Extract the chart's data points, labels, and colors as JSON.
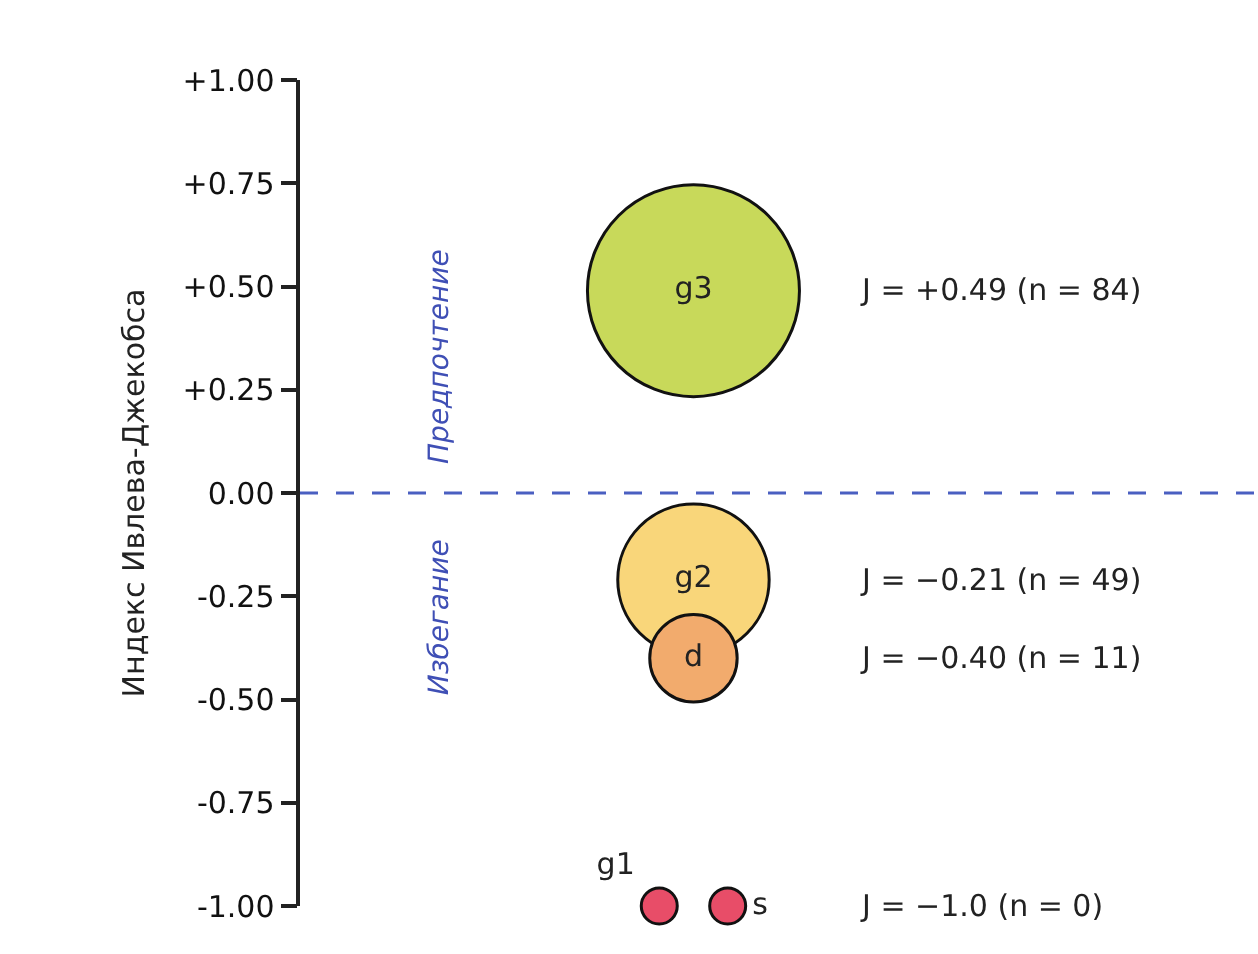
{
  "chart_data": {
    "type": "bubble",
    "ylabel": "Индекс Ивлева-Джекобса",
    "categories": [
      null,
      null,
      null,
      null,
      null,
      null,
      null,
      null,
      null,
      null,
      null,
      null,
      null,
      null,
      null,
      null,
      null,
      null,
      null,
      null,
      null,
      null,
      null,
      null,
      null,
      null,
      null,
      null
    ],
    "series": [
      {
        "name": "g3",
        "color": "#c8d95a",
        "values": [
          null,
          null,
          null,
          null,
          null,
          null,
          null,
          null,
          null,
          null,
          null,
          0.49,
          null,
          null,
          null,
          null,
          null,
          null,
          null,
          null,
          null,
          null,
          null,
          null,
          null,
          null,
          null,
          null
        ],
        "sizes": [
          null,
          null,
          null,
          null,
          null,
          null,
          null,
          null,
          null,
          null,
          null,
          1,
          null,
          null,
          null,
          null,
          null,
          null,
          null,
          null,
          null,
          null,
          null,
          null,
          null,
          null,
          null,
          null
        ]
      },
      {
        "name": "g2",
        "color": "#f9d67a",
        "values": [
          null,
          null,
          null,
          null,
          null,
          null,
          null,
          null,
          null,
          null,
          null,
          -0.21,
          null,
          null,
          null,
          null,
          null,
          null,
          null,
          null,
          null,
          null,
          null,
          null,
          null,
          null,
          null,
          null
        ],
        "sizes": [
          null,
          null,
          null,
          null,
          null,
          null,
          null,
          null,
          null,
          null,
          null,
          0.51,
          null,
          null,
          null,
          null,
          null,
          null,
          null,
          null,
          null,
          null,
          null,
          null,
          null,
          null,
          null,
          null
        ]
      },
      {
        "name": "d",
        "color": "#f2ab6d",
        "values": [
          null,
          null,
          null,
          null,
          null,
          null,
          null,
          null,
          null,
          null,
          null,
          -0.4,
          null,
          null,
          null,
          null,
          null,
          null,
          null,
          null,
          null,
          null,
          null,
          null,
          null,
          null,
          null,
          null
        ],
        "sizes": [
          null,
          null,
          null,
          null,
          null,
          null,
          null,
          null,
          null,
          null,
          null,
          0.17,
          null,
          null,
          null,
          null,
          null,
          null,
          null,
          null,
          null,
          null,
          null,
          null,
          null,
          null,
          null,
          null
        ]
      },
      {
        "name": "g1",
        "color": "#e84d68",
        "values": [
          null,
          null,
          null,
          null,
          null,
          null,
          null,
          null,
          null,
          null,
          -1.0,
          null,
          null,
          null,
          null,
          null,
          null,
          null,
          null,
          null,
          null,
          null,
          null,
          null,
          null,
          null,
          null,
          null
        ]
      },
      {
        "name": "s",
        "color": "#e84d68",
        "values": [
          null,
          null,
          null,
          null,
          null,
          null,
          null,
          null,
          null,
          null,
          null,
          null,
          -1.0,
          null,
          null,
          null,
          null,
          null,
          null,
          null,
          null,
          null,
          null,
          null,
          null,
          null,
          null,
          null
        ]
      }
    ],
    "ylim": [
      -1.0,
      1.0
    ],
    "yticks": [
      {
        "value": 1.0,
        "label": "+1.00"
      },
      {
        "value": 0.75,
        "label": "+0.75"
      },
      {
        "value": 0.5,
        "label": "+0.50"
      },
      {
        "value": 0.25,
        "label": "+0.25"
      },
      {
        "value": 0,
        "label": "0.00"
      },
      {
        "value": -0.25,
        "label": "-0.25"
      },
      {
        "value": -0.5,
        "label": "-0.50"
      },
      {
        "value": -0.75,
        "label": "-0.75"
      },
      {
        "value": -1.0,
        "label": "-1.00"
      }
    ],
    "tick_labels": "y",
    "ref_lines": [
      {
        "axis": "y",
        "value": 0,
        "color": "#4a5fc1",
        "line_style": "dashed"
      }
    ],
    "annotations": [
      "Предпочтение",
      "Избегание",
      "J = +0.49 (n = 84)",
      "J = −0.21 (n = 49)",
      "J = −0.40 (n = 11)",
      "J = −1.0 (n = 0)"
    ],
    "legend": false
  }
}
